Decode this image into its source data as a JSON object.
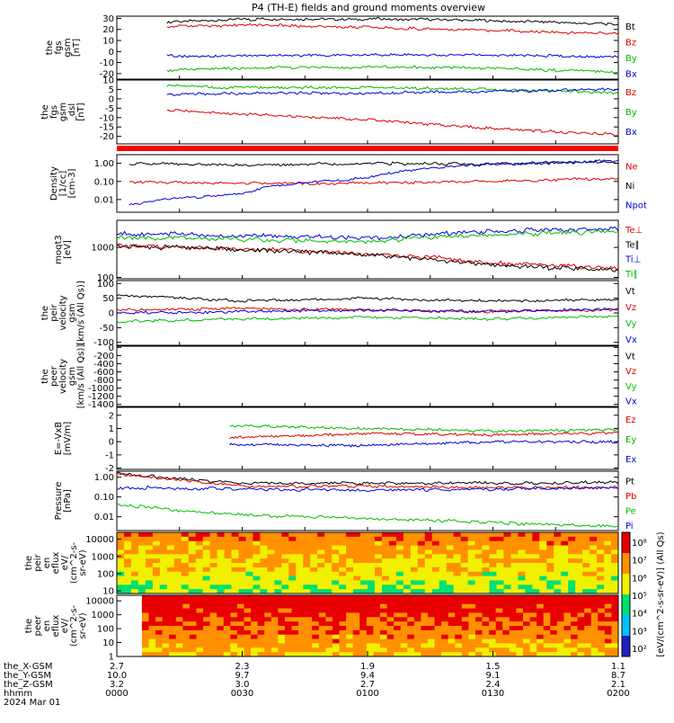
{
  "chart_data": {
    "type": "line",
    "title": "P4 (TH-E) fields and ground moments overview",
    "x": {
      "tick_labels": [
        "0000",
        "0030",
        "0100",
        "0130",
        "0200"
      ],
      "date_label": "2024 Mar 01",
      "rows": [
        {
          "label": "the_X-GSM",
          "values": [
            "2.7",
            "2.3",
            "1.9",
            "1.5",
            "1.1"
          ]
        },
        {
          "label": "the_Y-GSM",
          "values": [
            "10.0",
            "9.7",
            "9.4",
            "9.1",
            "8.7"
          ]
        },
        {
          "label": "the_Z-GSM",
          "values": [
            "3.2",
            "3.0",
            "2.7",
            "2.4",
            "2.1"
          ]
        },
        {
          "label": "hhmm",
          "values": [
            "0000",
            "0030",
            "0100",
            "0130",
            "0200"
          ]
        }
      ]
    },
    "panels": [
      {
        "ylabel": [
          "the",
          "fgs",
          "gsm",
          "[nT]"
        ],
        "scale": "linear",
        "ylim": [
          -25,
          32
        ],
        "yticks": [
          "30",
          "20",
          "10",
          "0",
          "-10",
          "-20"
        ],
        "ytick_values": [
          30,
          20,
          10,
          0,
          -10,
          -20
        ],
        "series": [
          {
            "name": "Bt",
            "color": "#000000",
            "t": [
              0.2,
              0.5,
              1.0,
              1.5,
              2.0
            ],
            "y": [
              27,
              29,
              29.5,
              28,
              25
            ]
          },
          {
            "name": "Bz",
            "color": "#dd0000",
            "t": [
              0.2,
              0.5,
              1.0,
              1.5,
              2.0
            ],
            "y": [
              23,
              24,
              22,
              19,
              16
            ]
          },
          {
            "name": "By",
            "color": "#00bb00",
            "t": [
              0.2,
              0.5,
              1.0,
              1.5,
              2.0
            ],
            "y": [
              -17,
              -15,
              -14,
              -15,
              -19
            ]
          },
          {
            "name": "Bx",
            "color": "#0000dd",
            "t": [
              0.2,
              0.5,
              1.0,
              1.5,
              2.0
            ],
            "y": [
              -4,
              -4,
              -3,
              -3,
              -5
            ]
          }
        ]
      },
      {
        "ylabel": [
          "the",
          "fgs",
          "gsm",
          "_dsl",
          "[nT]"
        ],
        "scale": "linear",
        "ylim": [
          -24,
          10
        ],
        "yticks": [
          "10",
          "5",
          "0",
          "-5",
          "-10",
          "-15",
          "-20"
        ],
        "ytick_values": [
          10,
          5,
          0,
          -5,
          -10,
          -15,
          -20
        ],
        "series": [
          {
            "name": "Bz",
            "color": "#dd0000",
            "t": [
              0.2,
              0.5,
              1.0,
              1.5,
              2.0
            ],
            "y": [
              -6,
              -8,
              -11,
              -16,
              -19
            ]
          },
          {
            "name": "By",
            "color": "#00bb00",
            "t": [
              0.2,
              0.5,
              1.0,
              1.5,
              2.0
            ],
            "y": [
              7,
              6,
              6,
              5,
              3
            ]
          },
          {
            "name": "Bx",
            "color": "#0000dd",
            "t": [
              0.2,
              0.5,
              1.0,
              1.5,
              2.0
            ],
            "y": [
              2,
              3,
              3,
              4,
              5
            ]
          }
        ]
      },
      {
        "ylabel": [
          "Density",
          "[1/cc]",
          "[cm-3]"
        ],
        "scale": "log",
        "ylim": [
          0.002,
          3
        ],
        "yticks": [
          "1.00",
          "0.10",
          "0.01"
        ],
        "ytick_values": [
          1,
          0.1,
          0.01
        ],
        "series": [
          {
            "name": "Ne",
            "color": "#dd0000",
            "t": [
              0.05,
              0.5,
              1.0,
              1.5,
              2.0
            ],
            "y": [
              0.09,
              0.08,
              0.08,
              0.1,
              0.15
            ]
          },
          {
            "name": "Ni",
            "color": "#000000",
            "t": [
              0.05,
              0.5,
              1.0,
              1.5,
              2.0
            ],
            "y": [
              1.0,
              0.8,
              1.0,
              0.9,
              1.2
            ]
          },
          {
            "name": "Npot",
            "color": "#0000dd",
            "t": [
              0.05,
              0.5,
              1.0,
              1.5,
              2.0
            ],
            "y": [
              0.005,
              0.02,
              0.15,
              0.9,
              1.4
            ]
          }
        ]
      },
      {
        "ylabel": [
          "moqt3",
          "[eV]"
        ],
        "scale": "log",
        "ylim": [
          90,
          8000
        ],
        "yticks": [
          "1000",
          "100"
        ],
        "ytick_values": [
          1000,
          100
        ],
        "series": [
          {
            "name": "Te⊥",
            "color": "#dd0000",
            "t": [
              0.0,
              0.5,
              1.0,
              1.5,
              2.0
            ],
            "y": [
              1200,
              900,
              600,
              300,
              200
            ]
          },
          {
            "name": "Te∥",
            "color": "#000000",
            "t": [
              0.0,
              0.5,
              1.0,
              1.5,
              2.0
            ],
            "y": [
              1100,
              850,
              550,
              250,
              170
            ]
          },
          {
            "name": "Ti⊥",
            "color": "#0000dd",
            "t": [
              0.0,
              0.5,
              1.0,
              1.5,
              2.0
            ],
            "y": [
              3000,
              2500,
              2000,
              3500,
              4000
            ]
          },
          {
            "name": "Ti∥",
            "color": "#00bb00",
            "t": [
              0.0,
              0.5,
              1.0,
              1.5,
              2.0
            ],
            "y": [
              2200,
              1800,
              1500,
              2800,
              3200
            ]
          }
        ]
      },
      {
        "ylabel": [
          "the",
          "peir",
          "velocity",
          "gsm",
          "[km/s (All Qs)]"
        ],
        "scale": "linear",
        "ylim": [
          -110,
          110
        ],
        "yticks": [
          "100",
          "50",
          "0",
          "-50",
          "-100"
        ],
        "ytick_values": [
          100,
          50,
          0,
          -50,
          -100
        ],
        "series": [
          {
            "name": "Vt",
            "color": "#000000",
            "t": [
              0.0,
              0.5,
              1.0,
              1.5,
              2.0
            ],
            "y": [
              60,
              40,
              50,
              40,
              45
            ]
          },
          {
            "name": "Vz",
            "color": "#dd0000",
            "t": [
              0.0,
              0.5,
              1.0,
              1.5,
              2.0
            ],
            "y": [
              10,
              15,
              10,
              5,
              10
            ]
          },
          {
            "name": "Vy",
            "color": "#00bb00",
            "t": [
              0.0,
              0.5,
              1.0,
              1.5,
              2.0
            ],
            "y": [
              -30,
              -20,
              -15,
              -20,
              -10
            ]
          },
          {
            "name": "Vx",
            "color": "#0000dd",
            "t": [
              0.0,
              0.5,
              1.0,
              1.5,
              2.0
            ],
            "y": [
              0,
              5,
              10,
              5,
              15
            ]
          }
        ]
      },
      {
        "ylabel": [
          "the",
          "peer",
          "velocity",
          "gsm",
          "[km/s (All Qs)]"
        ],
        "scale": "linear",
        "ylim": [
          -1450,
          30
        ],
        "yticks": [
          "0",
          "-200",
          "-400",
          "-600",
          "-800",
          "-1000",
          "-1200",
          "-1400"
        ],
        "ytick_values": [
          0,
          -200,
          -400,
          -600,
          -800,
          -1000,
          -1200,
          -1400
        ],
        "series": [
          {
            "name": "Vt",
            "color": "#000000",
            "t": [],
            "y": []
          },
          {
            "name": "Vz",
            "color": "#dd0000",
            "t": [],
            "y": []
          },
          {
            "name": "Vy",
            "color": "#00bb00",
            "t": [],
            "y": []
          },
          {
            "name": "Vx",
            "color": "#0000dd",
            "t": [],
            "y": []
          }
        ]
      },
      {
        "ylabel": [
          "E=-VxB",
          "[mV/m]"
        ],
        "scale": "linear",
        "ylim": [
          -2.1,
          2.6
        ],
        "yticks": [
          "2",
          "1",
          "0",
          "-1",
          "-2"
        ],
        "ytick_values": [
          2,
          1,
          0,
          -1,
          -2
        ],
        "series": [
          {
            "name": "Ez",
            "color": "#dd0000",
            "t": [
              0.45,
              1.0,
              1.5,
              2.0
            ],
            "y": [
              0.3,
              0.6,
              0.5,
              0.7
            ]
          },
          {
            "name": "Ey",
            "color": "#00bb00",
            "t": [
              0.45,
              1.0,
              1.5,
              2.0
            ],
            "y": [
              1.2,
              1.0,
              0.8,
              0.9
            ]
          },
          {
            "name": "Ex",
            "color": "#0000dd",
            "t": [
              0.45,
              1.0,
              1.5,
              2.0
            ],
            "y": [
              -0.2,
              -0.3,
              0.0,
              0.0
            ]
          }
        ]
      },
      {
        "ylabel": [
          "Pressure",
          "[nPa]"
        ],
        "scale": "log",
        "ylim": [
          0.002,
          2
        ],
        "yticks": [
          "1.00",
          "0.10",
          "0.01"
        ],
        "ytick_values": [
          1,
          0.1,
          0.01
        ],
        "series": [
          {
            "name": "Pt",
            "color": "#000000",
            "t": [
              0.0,
              0.25,
              0.5,
              1.0,
              1.5,
              2.0
            ],
            "y": [
              1.5,
              0.8,
              0.5,
              0.5,
              0.5,
              0.55
            ]
          },
          {
            "name": "Pb",
            "color": "#dd0000",
            "t": [
              0.0,
              0.25,
              0.5,
              1.0,
              1.5,
              2.0
            ],
            "y": [
              1.4,
              0.7,
              0.35,
              0.35,
              0.3,
              0.3
            ]
          },
          {
            "name": "Pe",
            "color": "#00bb00",
            "t": [
              0.0,
              0.25,
              0.5,
              1.0,
              1.5,
              2.0
            ],
            "y": [
              0.04,
              0.02,
              0.012,
              0.008,
              0.005,
              0.003
            ]
          },
          {
            "name": "Pi",
            "color": "#0000dd",
            "t": [
              0.0,
              0.25,
              0.5,
              1.0,
              1.5,
              2.0
            ],
            "y": [
              0.3,
              0.28,
              0.25,
              0.22,
              0.25,
              0.28
            ]
          }
        ]
      }
    ],
    "spectrograms": [
      {
        "type": "heatmap",
        "ylabel": [
          "the",
          "peir",
          "en",
          "eflux",
          "eV/",
          "(cm^2-s-",
          "sr-eV)"
        ],
        "scale": "log",
        "ylim": [
          7,
          25000
        ],
        "yticks": [
          "10000",
          "1000",
          "100",
          "10"
        ],
        "ytick_values": [
          10000,
          1000,
          100,
          10
        ]
      },
      {
        "type": "heatmap",
        "ylabel": [
          "the",
          "peer",
          "en",
          "eflux",
          "eV/",
          "(cm^2-s-",
          "sr-eV)"
        ],
        "scale": "log",
        "ylim": [
          1,
          25000
        ],
        "yticks": [
          "10000",
          "1000",
          "100",
          "10",
          "1"
        ],
        "ytick_values": [
          10000,
          1000,
          100,
          10,
          1
        ]
      }
    ],
    "colorbar": {
      "label": "[eV/(cm^2-s-sr-eV)] (All Qs)",
      "ticks": [
        "10⁸",
        "10⁷",
        "10⁶",
        "10⁵",
        "10⁴",
        "10³",
        "10²"
      ]
    }
  }
}
